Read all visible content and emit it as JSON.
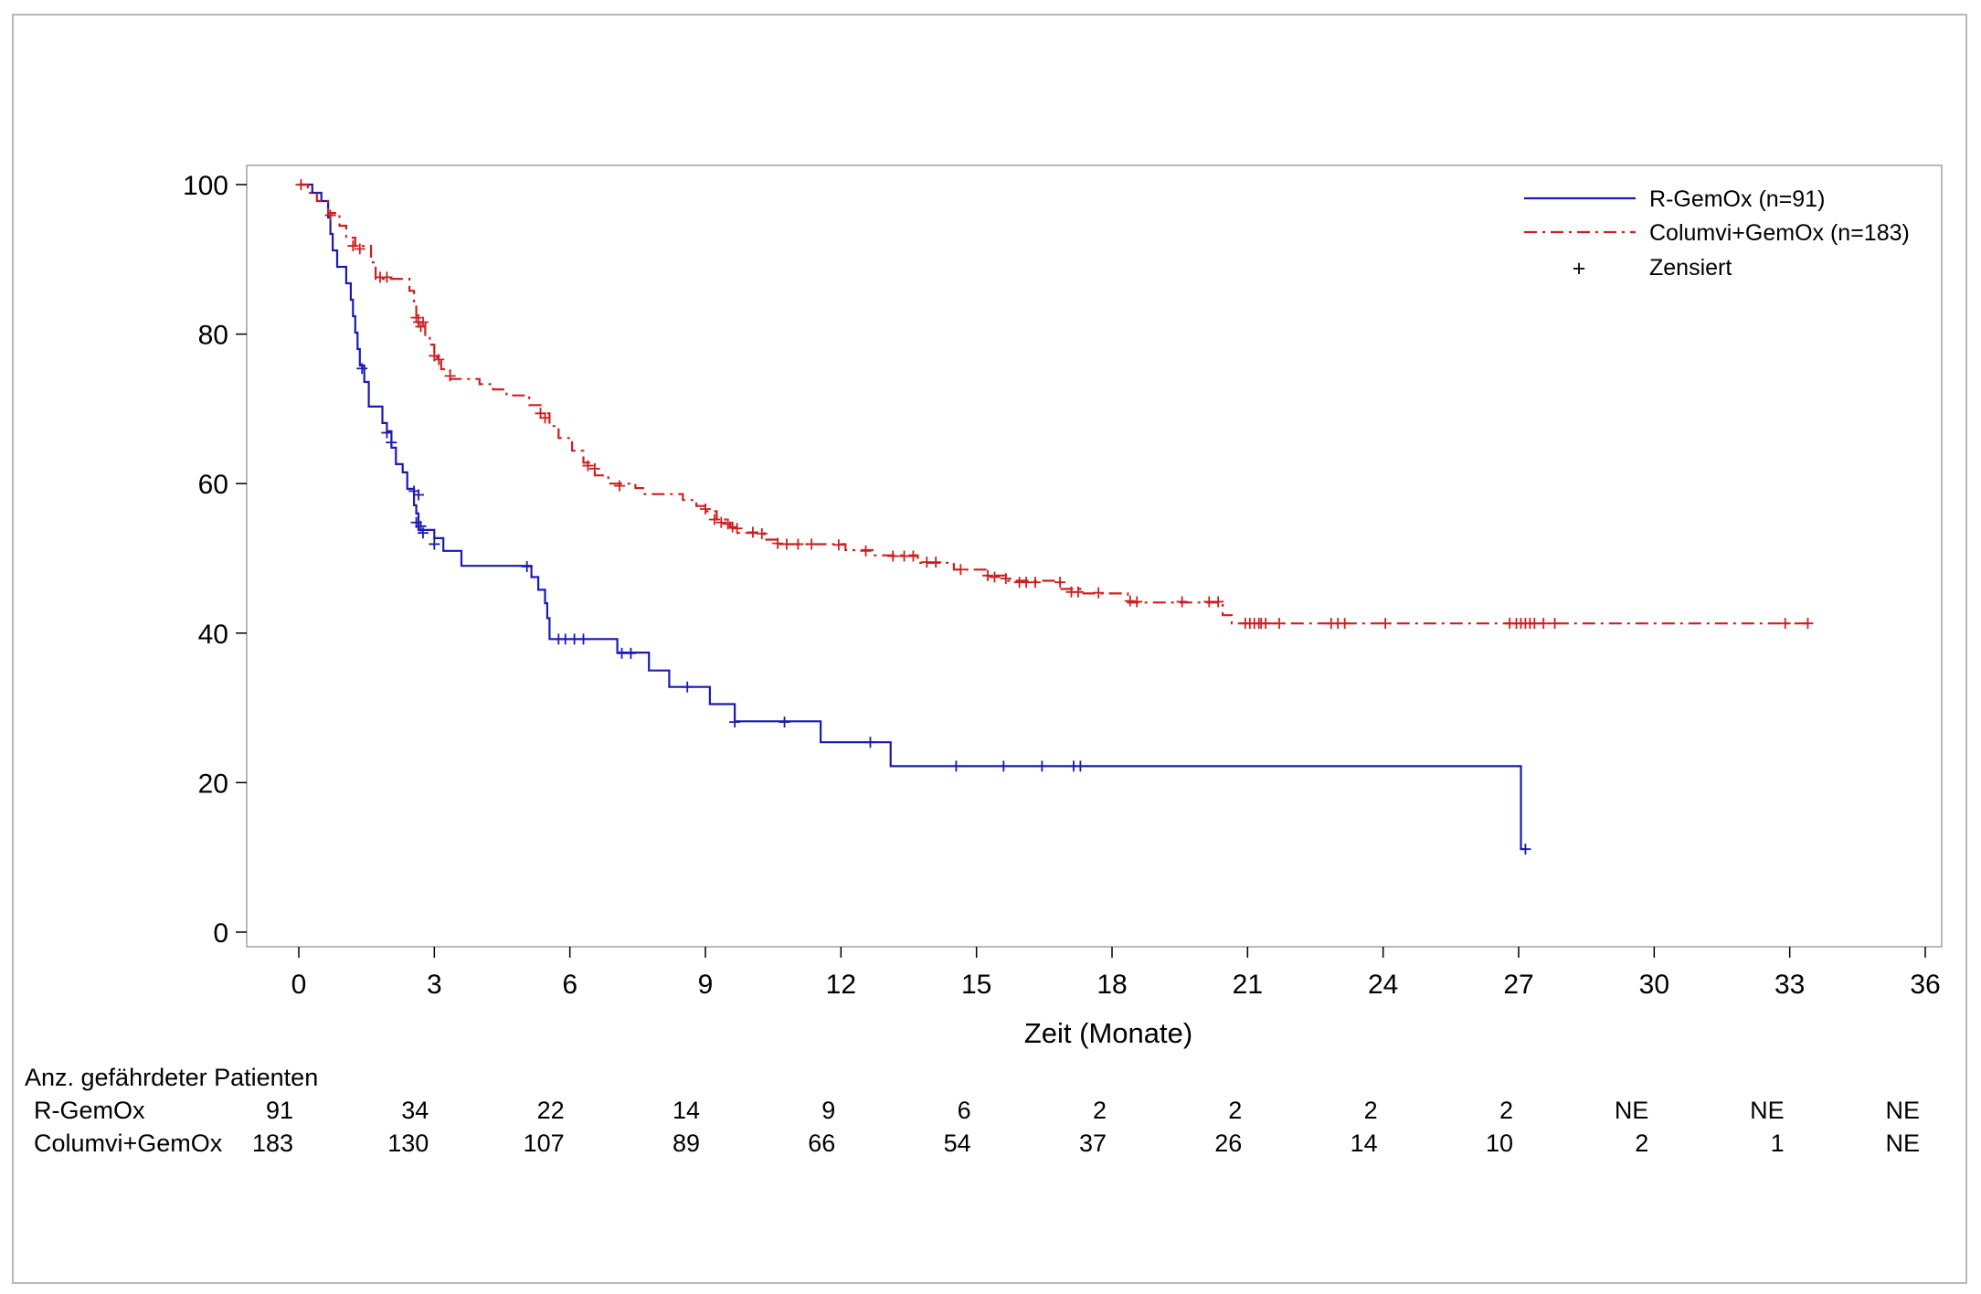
{
  "chart_data": {
    "type": "line",
    "subtype": "kaplan-meier",
    "title": "",
    "xlabel": "Zeit (Monate)",
    "ylabel": "",
    "xlim": [
      -1.2,
      36.1
    ],
    "ylim": [
      -2,
      102.5
    ],
    "xticks": [
      0,
      3,
      6,
      9,
      12,
      15,
      18,
      21,
      24,
      27,
      30,
      33,
      36
    ],
    "yticks": [
      0,
      20,
      40,
      60,
      80,
      100
    ],
    "grid": false,
    "legend_position": "top-right",
    "legend": {
      "entries": [
        {
          "label": "R-GemOx (n=91)",
          "series": "R-GemOx"
        },
        {
          "label": "Columvi+GemOx (n=183)",
          "series": "Columvi+GemOx"
        },
        {
          "label": "Zensiert",
          "symbol": "+"
        }
      ]
    },
    "series": [
      {
        "name": "R-GemOx",
        "color": "#1a1ab4",
        "dash": "solid",
        "steps": [
          [
            0,
            100
          ],
          [
            0.3,
            98.9
          ],
          [
            0.5,
            97.8
          ],
          [
            0.65,
            95.6
          ],
          [
            0.7,
            93.4
          ],
          [
            0.75,
            91.2
          ],
          [
            0.85,
            89.0
          ],
          [
            1.05,
            86.8
          ],
          [
            1.15,
            84.6
          ],
          [
            1.2,
            82.4
          ],
          [
            1.25,
            80.2
          ],
          [
            1.3,
            78.0
          ],
          [
            1.35,
            75.8
          ],
          [
            1.45,
            73.6
          ],
          [
            1.55,
            70.3
          ],
          [
            1.85,
            68.1
          ],
          [
            1.95,
            67.0
          ],
          [
            2.05,
            64.8
          ],
          [
            2.15,
            62.6
          ],
          [
            2.3,
            61.5
          ],
          [
            2.4,
            59.3
          ],
          [
            2.55,
            57.1
          ],
          [
            2.6,
            56.0
          ],
          [
            2.65,
            53.8
          ],
          [
            3.0,
            52.7
          ],
          [
            3.2,
            51.0
          ],
          [
            3.6,
            49.0
          ],
          [
            5.15,
            47.5
          ],
          [
            5.3,
            45.8
          ],
          [
            5.45,
            44.0
          ],
          [
            5.5,
            42.0
          ],
          [
            5.55,
            39.2
          ],
          [
            7.05,
            37.4
          ],
          [
            7.75,
            35.0
          ],
          [
            8.2,
            32.8
          ],
          [
            9.1,
            30.5
          ],
          [
            9.65,
            28.2
          ],
          [
            11.55,
            25.4
          ],
          [
            13.1,
            22.2
          ],
          [
            27.05,
            11.1
          ],
          [
            27.15,
            11.1
          ]
        ],
        "censored": [
          [
            1.4,
            75.4
          ],
          [
            1.95,
            66.8
          ],
          [
            2.05,
            65.5
          ],
          [
            2.55,
            59.0
          ],
          [
            2.65,
            58.5
          ],
          [
            2.6,
            54.8
          ],
          [
            2.7,
            54.3
          ],
          [
            2.75,
            53.4
          ],
          [
            3.0,
            51.9
          ],
          [
            5.05,
            48.9
          ],
          [
            5.75,
            39.2
          ],
          [
            5.9,
            39.2
          ],
          [
            6.1,
            39.2
          ],
          [
            6.3,
            39.2
          ],
          [
            7.15,
            37.3
          ],
          [
            7.35,
            37.3
          ],
          [
            8.6,
            32.8
          ],
          [
            9.65,
            28.1
          ],
          [
            10.75,
            28.1
          ],
          [
            12.65,
            25.4
          ],
          [
            14.55,
            22.2
          ],
          [
            15.6,
            22.2
          ],
          [
            16.45,
            22.2
          ],
          [
            17.15,
            22.2
          ],
          [
            17.3,
            22.2
          ],
          [
            27.15,
            11.1
          ]
        ]
      },
      {
        "name": "Columvi+GemOx",
        "color": "#cc1f1f",
        "dash": "dash-dot",
        "steps": [
          [
            0,
            100
          ],
          [
            0.2,
            98.9
          ],
          [
            0.4,
            97.8
          ],
          [
            0.65,
            96.2
          ],
          [
            0.9,
            94.5
          ],
          [
            1.05,
            92.9
          ],
          [
            1.25,
            91.8
          ],
          [
            1.6,
            89.6
          ],
          [
            1.7,
            87.4
          ],
          [
            2.45,
            85.8
          ],
          [
            2.55,
            84.1
          ],
          [
            2.6,
            82.5
          ],
          [
            2.65,
            81.4
          ],
          [
            2.8,
            79.7
          ],
          [
            2.9,
            78.6
          ],
          [
            3.0,
            76.9
          ],
          [
            3.15,
            75.3
          ],
          [
            3.35,
            74.0
          ],
          [
            4.0,
            73.3
          ],
          [
            4.3,
            72.6
          ],
          [
            4.6,
            71.8
          ],
          [
            5.1,
            70.5
          ],
          [
            5.35,
            69.4
          ],
          [
            5.55,
            67.7
          ],
          [
            5.75,
            66.1
          ],
          [
            6.05,
            64.4
          ],
          [
            6.3,
            62.8
          ],
          [
            6.55,
            61.1
          ],
          [
            6.85,
            60.0
          ],
          [
            7.45,
            59.4
          ],
          [
            7.65,
            58.6
          ],
          [
            8.5,
            57.8
          ],
          [
            8.8,
            57.0
          ],
          [
            9.0,
            56.3
          ],
          [
            9.25,
            55.2
          ],
          [
            9.55,
            54.1
          ],
          [
            9.7,
            53.4
          ],
          [
            10.3,
            52.5
          ],
          [
            10.6,
            51.9
          ],
          [
            11.4,
            51.9
          ],
          [
            12.1,
            51.1
          ],
          [
            12.7,
            50.4
          ],
          [
            13.7,
            49.4
          ],
          [
            14.5,
            48.5
          ],
          [
            15.2,
            47.7
          ],
          [
            15.7,
            47.0
          ],
          [
            16.85,
            45.9
          ],
          [
            17.3,
            45.3
          ],
          [
            18.35,
            44.1
          ],
          [
            20.45,
            42.4
          ],
          [
            20.65,
            41.3
          ],
          [
            33.4,
            41.3
          ]
        ],
        "censored": [
          [
            0.05,
            100
          ],
          [
            0.7,
            95.9
          ],
          [
            1.2,
            91.8
          ],
          [
            1.35,
            91.4
          ],
          [
            1.8,
            87.6
          ],
          [
            1.95,
            87.6
          ],
          [
            2.6,
            82.2
          ],
          [
            2.65,
            81.6
          ],
          [
            2.7,
            81.0
          ],
          [
            2.75,
            81.6
          ],
          [
            3.0,
            77.1
          ],
          [
            3.1,
            76.6
          ],
          [
            3.35,
            74.4
          ],
          [
            5.35,
            69.4
          ],
          [
            5.45,
            68.8
          ],
          [
            6.4,
            62.4
          ],
          [
            6.55,
            62.0
          ],
          [
            7.1,
            59.7
          ],
          [
            9.0,
            56.6
          ],
          [
            9.2,
            55.2
          ],
          [
            9.35,
            54.8
          ],
          [
            9.5,
            54.6
          ],
          [
            9.6,
            54.2
          ],
          [
            9.7,
            54.0
          ],
          [
            10.05,
            53.5
          ],
          [
            10.25,
            53.3
          ],
          [
            10.6,
            52.0
          ],
          [
            10.8,
            51.9
          ],
          [
            11.05,
            51.9
          ],
          [
            11.35,
            51.9
          ],
          [
            11.95,
            51.8
          ],
          [
            12.55,
            51.0
          ],
          [
            13.15,
            50.3
          ],
          [
            13.4,
            50.3
          ],
          [
            13.6,
            50.3
          ],
          [
            13.9,
            49.5
          ],
          [
            14.1,
            49.5
          ],
          [
            14.65,
            48.5
          ],
          [
            15.25,
            47.7
          ],
          [
            15.4,
            47.5
          ],
          [
            15.65,
            47.3
          ],
          [
            15.95,
            46.8
          ],
          [
            16.1,
            46.8
          ],
          [
            16.3,
            46.8
          ],
          [
            16.85,
            46.8
          ],
          [
            17.1,
            45.5
          ],
          [
            17.25,
            45.5
          ],
          [
            17.7,
            45.4
          ],
          [
            18.4,
            44.3
          ],
          [
            18.55,
            44.2
          ],
          [
            19.55,
            44.2
          ],
          [
            20.15,
            44.2
          ],
          [
            20.35,
            44.2
          ],
          [
            20.95,
            41.3
          ],
          [
            21.05,
            41.3
          ],
          [
            21.15,
            41.3
          ],
          [
            21.25,
            41.3
          ],
          [
            21.3,
            41.3
          ],
          [
            21.4,
            41.3
          ],
          [
            21.7,
            41.3
          ],
          [
            22.85,
            41.3
          ],
          [
            23.0,
            41.3
          ],
          [
            23.15,
            41.3
          ],
          [
            24.05,
            41.3
          ],
          [
            26.8,
            41.3
          ],
          [
            26.95,
            41.3
          ],
          [
            27.05,
            41.3
          ],
          [
            27.15,
            41.3
          ],
          [
            27.25,
            41.3
          ],
          [
            27.35,
            41.3
          ],
          [
            27.55,
            41.3
          ],
          [
            27.8,
            41.3
          ],
          [
            32.9,
            41.3
          ],
          [
            33.4,
            41.3
          ]
        ]
      }
    ]
  },
  "risk_table": {
    "title": "Anz. gefährdeter Patienten",
    "rows": [
      {
        "label": "R-GemOx",
        "values": [
          "91",
          "34",
          "22",
          "14",
          "9",
          "6",
          "2",
          "2",
          "2",
          "2",
          "NE",
          "NE",
          "NE"
        ]
      },
      {
        "label": "Columvi+GemOx",
        "values": [
          "183",
          "130",
          "107",
          "89",
          "66",
          "54",
          "37",
          "26",
          "14",
          "10",
          "2",
          "1",
          "NE"
        ]
      }
    ]
  }
}
